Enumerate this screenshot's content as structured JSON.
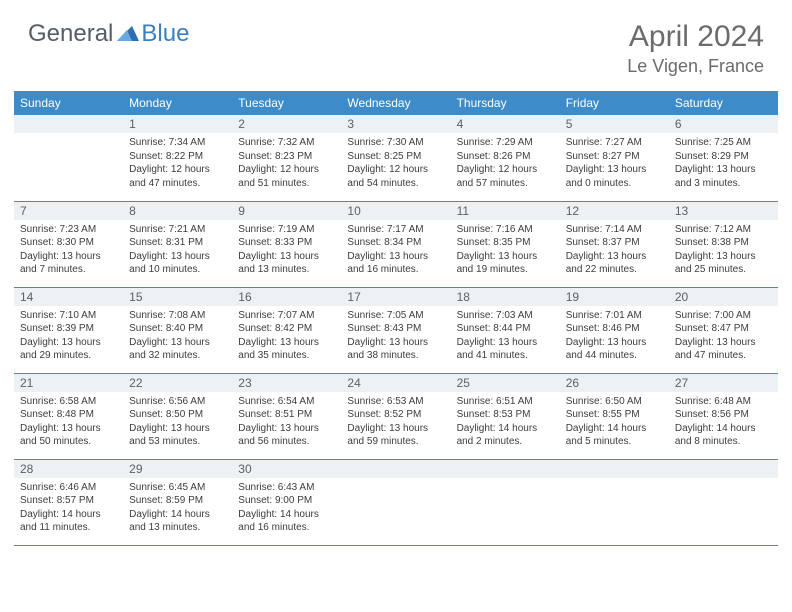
{
  "brand": {
    "part1": "General",
    "part2": "Blue"
  },
  "title": "April 2024",
  "location": "Le Vigen, France",
  "colors": {
    "header_bar": "#3d8bc9",
    "daynum_bg": "#eef1f3",
    "text_gray": "#6b6b6b",
    "cell_text": "#3d3d3d"
  },
  "dow": [
    "Sunday",
    "Monday",
    "Tuesday",
    "Wednesday",
    "Thursday",
    "Friday",
    "Saturday"
  ],
  "weeks": [
    [
      {
        "n": "",
        "sr": "",
        "ss": "",
        "dl": ""
      },
      {
        "n": "1",
        "sr": "Sunrise: 7:34 AM",
        "ss": "Sunset: 8:22 PM",
        "dl": "Daylight: 12 hours and 47 minutes."
      },
      {
        "n": "2",
        "sr": "Sunrise: 7:32 AM",
        "ss": "Sunset: 8:23 PM",
        "dl": "Daylight: 12 hours and 51 minutes."
      },
      {
        "n": "3",
        "sr": "Sunrise: 7:30 AM",
        "ss": "Sunset: 8:25 PM",
        "dl": "Daylight: 12 hours and 54 minutes."
      },
      {
        "n": "4",
        "sr": "Sunrise: 7:29 AM",
        "ss": "Sunset: 8:26 PM",
        "dl": "Daylight: 12 hours and 57 minutes."
      },
      {
        "n": "5",
        "sr": "Sunrise: 7:27 AM",
        "ss": "Sunset: 8:27 PM",
        "dl": "Daylight: 13 hours and 0 minutes."
      },
      {
        "n": "6",
        "sr": "Sunrise: 7:25 AM",
        "ss": "Sunset: 8:29 PM",
        "dl": "Daylight: 13 hours and 3 minutes."
      }
    ],
    [
      {
        "n": "7",
        "sr": "Sunrise: 7:23 AM",
        "ss": "Sunset: 8:30 PM",
        "dl": "Daylight: 13 hours and 7 minutes."
      },
      {
        "n": "8",
        "sr": "Sunrise: 7:21 AM",
        "ss": "Sunset: 8:31 PM",
        "dl": "Daylight: 13 hours and 10 minutes."
      },
      {
        "n": "9",
        "sr": "Sunrise: 7:19 AM",
        "ss": "Sunset: 8:33 PM",
        "dl": "Daylight: 13 hours and 13 minutes."
      },
      {
        "n": "10",
        "sr": "Sunrise: 7:17 AM",
        "ss": "Sunset: 8:34 PM",
        "dl": "Daylight: 13 hours and 16 minutes."
      },
      {
        "n": "11",
        "sr": "Sunrise: 7:16 AM",
        "ss": "Sunset: 8:35 PM",
        "dl": "Daylight: 13 hours and 19 minutes."
      },
      {
        "n": "12",
        "sr": "Sunrise: 7:14 AM",
        "ss": "Sunset: 8:37 PM",
        "dl": "Daylight: 13 hours and 22 minutes."
      },
      {
        "n": "13",
        "sr": "Sunrise: 7:12 AM",
        "ss": "Sunset: 8:38 PM",
        "dl": "Daylight: 13 hours and 25 minutes."
      }
    ],
    [
      {
        "n": "14",
        "sr": "Sunrise: 7:10 AM",
        "ss": "Sunset: 8:39 PM",
        "dl": "Daylight: 13 hours and 29 minutes."
      },
      {
        "n": "15",
        "sr": "Sunrise: 7:08 AM",
        "ss": "Sunset: 8:40 PM",
        "dl": "Daylight: 13 hours and 32 minutes."
      },
      {
        "n": "16",
        "sr": "Sunrise: 7:07 AM",
        "ss": "Sunset: 8:42 PM",
        "dl": "Daylight: 13 hours and 35 minutes."
      },
      {
        "n": "17",
        "sr": "Sunrise: 7:05 AM",
        "ss": "Sunset: 8:43 PM",
        "dl": "Daylight: 13 hours and 38 minutes."
      },
      {
        "n": "18",
        "sr": "Sunrise: 7:03 AM",
        "ss": "Sunset: 8:44 PM",
        "dl": "Daylight: 13 hours and 41 minutes."
      },
      {
        "n": "19",
        "sr": "Sunrise: 7:01 AM",
        "ss": "Sunset: 8:46 PM",
        "dl": "Daylight: 13 hours and 44 minutes."
      },
      {
        "n": "20",
        "sr": "Sunrise: 7:00 AM",
        "ss": "Sunset: 8:47 PM",
        "dl": "Daylight: 13 hours and 47 minutes."
      }
    ],
    [
      {
        "n": "21",
        "sr": "Sunrise: 6:58 AM",
        "ss": "Sunset: 8:48 PM",
        "dl": "Daylight: 13 hours and 50 minutes."
      },
      {
        "n": "22",
        "sr": "Sunrise: 6:56 AM",
        "ss": "Sunset: 8:50 PM",
        "dl": "Daylight: 13 hours and 53 minutes."
      },
      {
        "n": "23",
        "sr": "Sunrise: 6:54 AM",
        "ss": "Sunset: 8:51 PM",
        "dl": "Daylight: 13 hours and 56 minutes."
      },
      {
        "n": "24",
        "sr": "Sunrise: 6:53 AM",
        "ss": "Sunset: 8:52 PM",
        "dl": "Daylight: 13 hours and 59 minutes."
      },
      {
        "n": "25",
        "sr": "Sunrise: 6:51 AM",
        "ss": "Sunset: 8:53 PM",
        "dl": "Daylight: 14 hours and 2 minutes."
      },
      {
        "n": "26",
        "sr": "Sunrise: 6:50 AM",
        "ss": "Sunset: 8:55 PM",
        "dl": "Daylight: 14 hours and 5 minutes."
      },
      {
        "n": "27",
        "sr": "Sunrise: 6:48 AM",
        "ss": "Sunset: 8:56 PM",
        "dl": "Daylight: 14 hours and 8 minutes."
      }
    ],
    [
      {
        "n": "28",
        "sr": "Sunrise: 6:46 AM",
        "ss": "Sunset: 8:57 PM",
        "dl": "Daylight: 14 hours and 11 minutes."
      },
      {
        "n": "29",
        "sr": "Sunrise: 6:45 AM",
        "ss": "Sunset: 8:59 PM",
        "dl": "Daylight: 14 hours and 13 minutes."
      },
      {
        "n": "30",
        "sr": "Sunrise: 6:43 AM",
        "ss": "Sunset: 9:00 PM",
        "dl": "Daylight: 14 hours and 16 minutes."
      },
      {
        "n": "",
        "sr": "",
        "ss": "",
        "dl": ""
      },
      {
        "n": "",
        "sr": "",
        "ss": "",
        "dl": ""
      },
      {
        "n": "",
        "sr": "",
        "ss": "",
        "dl": ""
      },
      {
        "n": "",
        "sr": "",
        "ss": "",
        "dl": ""
      }
    ]
  ]
}
